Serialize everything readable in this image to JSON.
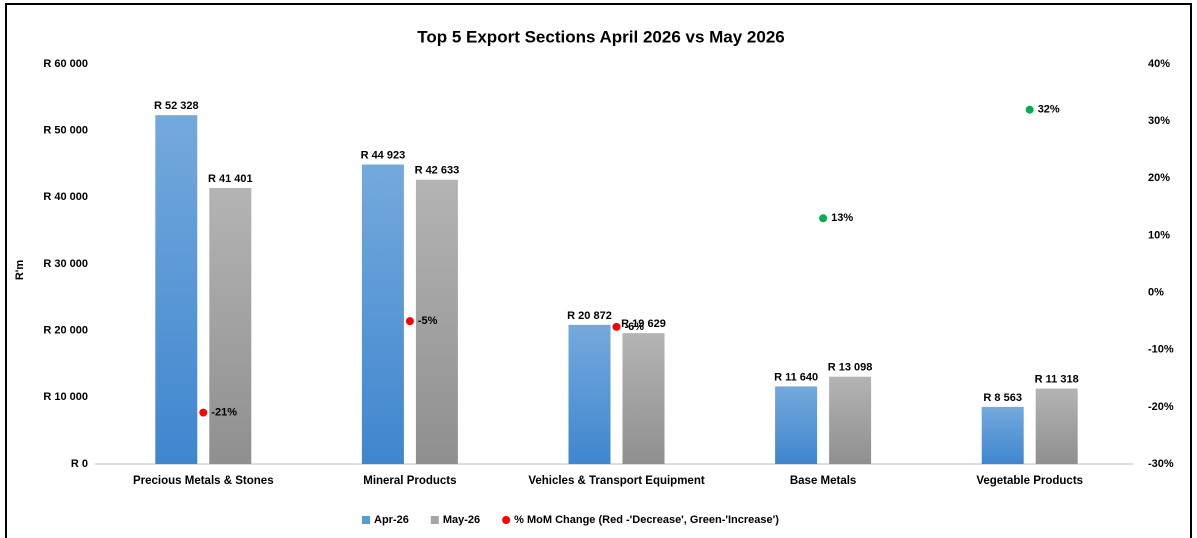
{
  "chart_data": {
    "type": "bar",
    "title": "Top 5 Export Sections  April 2026 vs May 2026",
    "y_label": "R'm",
    "categories": [
      "Precious Metals & Stones",
      "Mineral Products",
      "Vehicles & Transport Equipment",
      "Base Metals",
      "Vegetable Products"
    ],
    "series": [
      {
        "name": "Apr-26",
        "color": "#5b9bd5",
        "values": [
          52328,
          44923,
          20872,
          11640,
          8563
        ],
        "value_labels": [
          "R 52 328",
          "R 44 923",
          "R 20 872",
          "R 11 640",
          "R 8 563"
        ]
      },
      {
        "name": "May-26",
        "color": "#a5a5a5",
        "values": [
          41401,
          42633,
          19629,
          13098,
          11318
        ],
        "value_labels": [
          "R 41 401",
          "R 42 633",
          "R 19 629",
          "R 13 098",
          "R 11 318"
        ]
      },
      {
        "name": "% MoM Change (Red -'Decrease', Green-'Increase')",
        "type": "scatter",
        "axis": "y2",
        "color": "#ff0000",
        "colors": [
          "#ff0000",
          "#ff0000",
          "#ff0000",
          "#00b050",
          "#00b050"
        ],
        "values": [
          -21,
          -5,
          -6,
          13,
          32
        ],
        "value_labels": [
          "-21%",
          "-5%",
          "-6%",
          "13%",
          "32%"
        ]
      }
    ],
    "ylim": [
      0,
      60000
    ],
    "yticks": [
      {
        "value": 0,
        "label": "R 0"
      },
      {
        "value": 10000,
        "label": "R 10 000"
      },
      {
        "value": 20000,
        "label": "R 20 000"
      },
      {
        "value": 30000,
        "label": "R 30 000"
      },
      {
        "value": 40000,
        "label": "R 40 000"
      },
      {
        "value": 50000,
        "label": "R 50 000"
      },
      {
        "value": 60000,
        "label": "R 60 000"
      }
    ],
    "y2lim": [
      -30,
      40
    ],
    "y2ticks": [
      {
        "value": -30,
        "label": "-30%"
      },
      {
        "value": -20,
        "label": "-20%"
      },
      {
        "value": -10,
        "label": "-10%"
      },
      {
        "value": 0,
        "label": "0%"
      },
      {
        "value": 10,
        "label": "10%"
      },
      {
        "value": 20,
        "label": "20%"
      },
      {
        "value": 30,
        "label": "30%"
      },
      {
        "value": 40,
        "label": "40%"
      }
    ],
    "legend": "bottom",
    "grid": false
  }
}
